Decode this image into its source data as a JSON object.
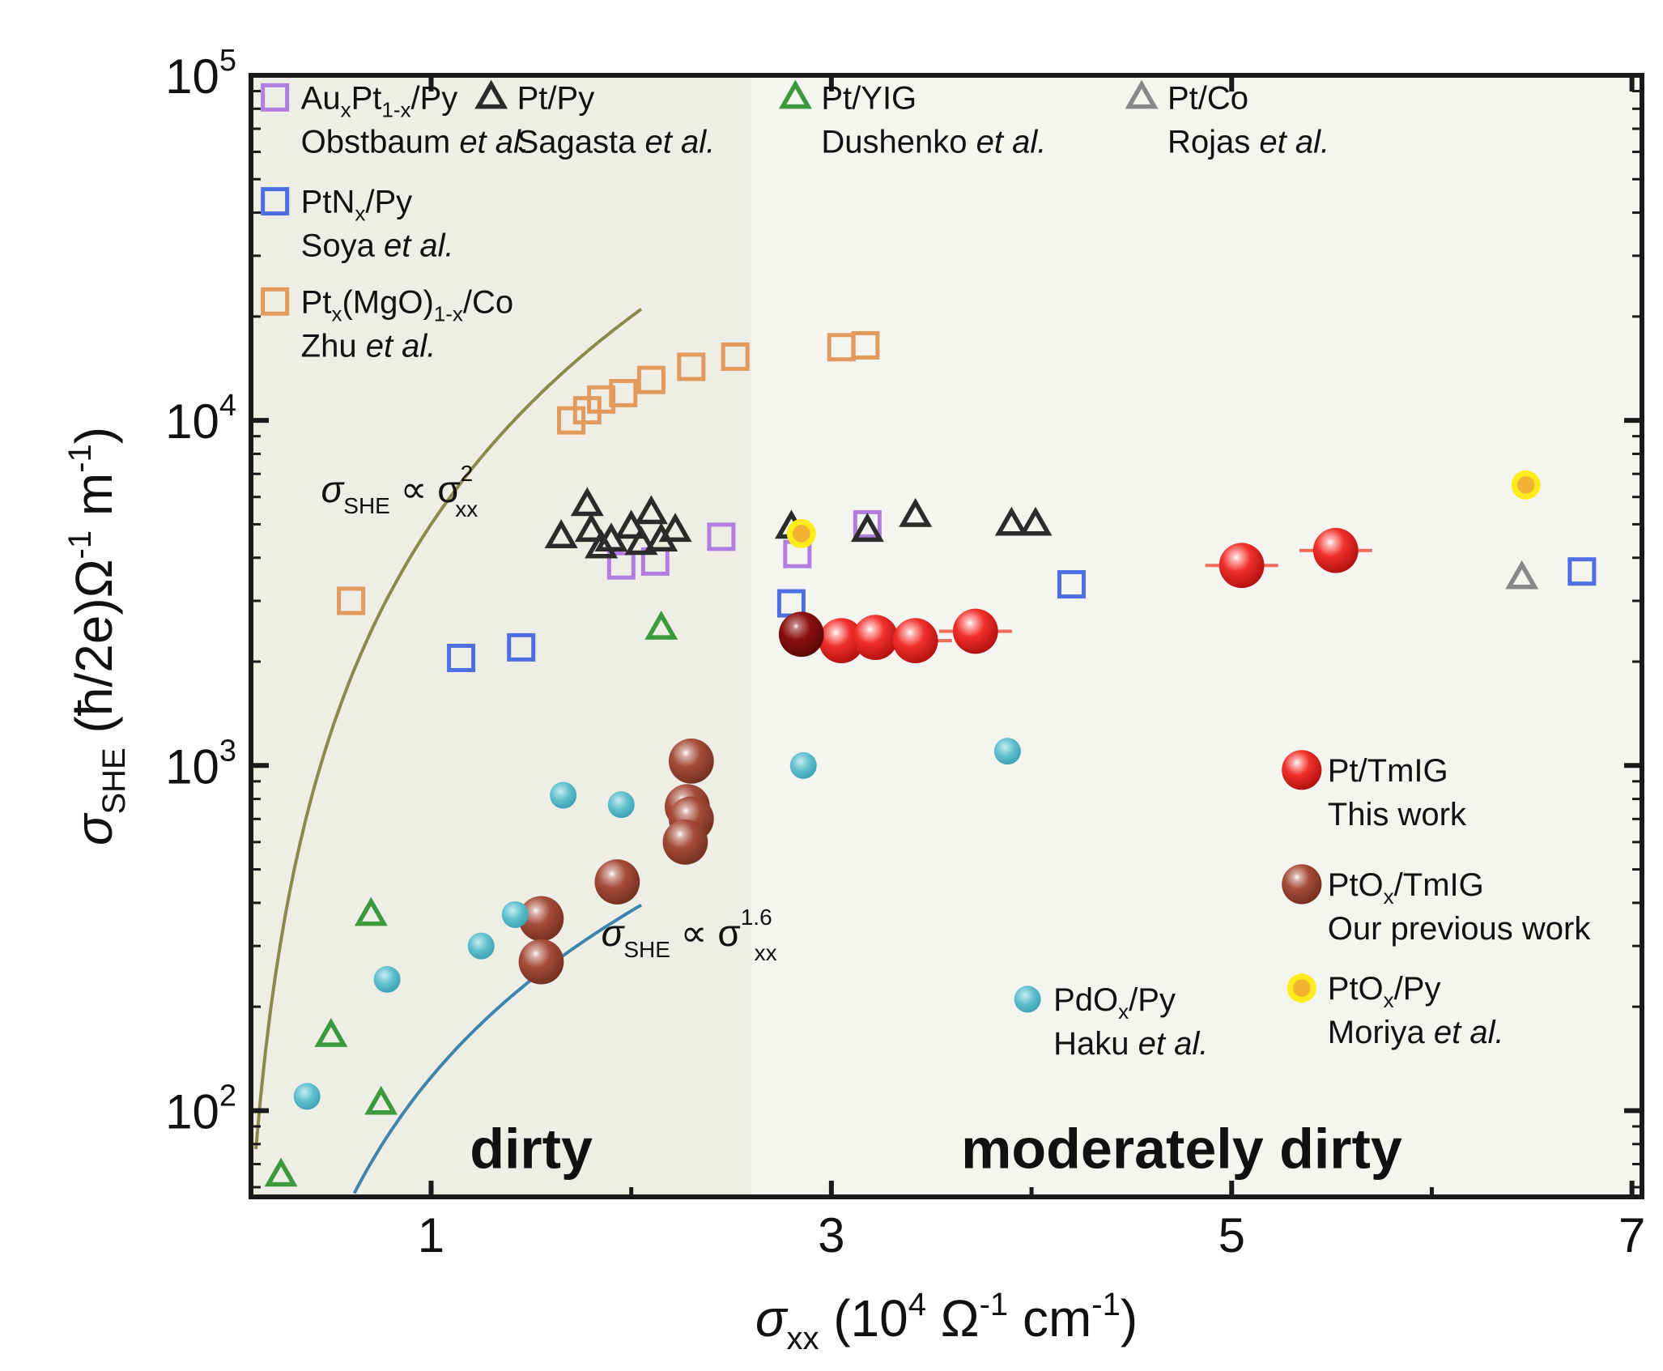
{
  "chart_data": {
    "type": "scatter",
    "xlabel": {
      "sym": "σ",
      "sub": "xx",
      "unit_open": " (10",
      "unit_exp": "4",
      "unit_rest": " Ω",
      "unit_exp2": "-1",
      "unit_end": " cm",
      "unit_exp3": "-1",
      "unit_close": ")"
    },
    "ylabel": {
      "sym": "σ",
      "sub": "SHE",
      "rest": " (ħ/2e)Ω",
      "exp1": "-1",
      "mid": " m",
      "exp2": "-1",
      "close": ")"
    },
    "xlim": [
      0.1,
      7.05
    ],
    "ylim_log10": [
      1.75,
      5
    ],
    "x_ticks": [
      {
        "v": 1,
        "label": "1"
      },
      {
        "v": 3,
        "label": "3"
      },
      {
        "v": 5,
        "label": "5"
      },
      {
        "v": 7,
        "label": "7"
      }
    ],
    "y_ticks": [
      {
        "v": 100000,
        "base": "10",
        "exp": "5"
      },
      {
        "v": 10000,
        "base": "10",
        "exp": "4"
      },
      {
        "v": 1000,
        "base": "10",
        "exp": "3"
      },
      {
        "v": 100,
        "base": "10",
        "exp": "2"
      }
    ],
    "regions": [
      {
        "name": "dirty",
        "label": "dirty",
        "x_from": 0.1,
        "x_to": 2.6,
        "fill": "#eeede6"
      },
      {
        "name": "moderately-dirty",
        "label": "moderately dirty",
        "x_from": 2.6,
        "x_to": 7.05,
        "fill": "#f4f4f0"
      }
    ],
    "region_label_at": [
      {
        "x": 1.5,
        "y": 76
      },
      {
        "x": 4.75,
        "y": 76
      }
    ],
    "relations": [
      {
        "name": "quadratic",
        "label_sym": "σ",
        "label_sub": "SHE",
        "label_prop": " ∝ σ",
        "label_sub2": "xx",
        "label_exp": "2",
        "color": "#8a8a4a",
        "exponent": 2,
        "coef": 5000,
        "x_range": [
          0.1,
          2.05
        ],
        "label_x": 0.45,
        "label_y": 5800
      },
      {
        "name": "power-1.6",
        "label_sym": "σ",
        "label_sub": "SHE",
        "label_prop": " ∝ σ",
        "label_sub2": "xx",
        "label_exp": "1.6",
        "color": "#3e85ad",
        "exponent": 1.6,
        "coef": 125,
        "x_range": [
          0.5,
          2.05
        ],
        "label_x": 1.85,
        "label_y": 300
      }
    ],
    "series": [
      {
        "name": "AuxPt1-x/Py",
        "label_main": "Au",
        "label_sub1": "x",
        "label_mid": "Pt",
        "label_sub2": "1-x",
        "label_end": "/Py",
        "ref_main": "Obstbaum ",
        "ref_etal": "et al.",
        "marker": "square",
        "color": "#b07ee0",
        "points": [
          [
            1.95,
            3800
          ],
          [
            2.12,
            3900
          ],
          [
            2.45,
            4600
          ],
          [
            2.83,
            4100
          ],
          [
            3.18,
            5000
          ]
        ]
      },
      {
        "name": "PtNx/Py",
        "label_main": "PtN",
        "label_sub1": "x",
        "label_end": "/Py",
        "ref_main": "Soya ",
        "ref_etal": "et al.",
        "marker": "square",
        "color": "#4e6ee3",
        "points": [
          [
            1.15,
            2050
          ],
          [
            1.45,
            2200
          ],
          [
            2.8,
            2950
          ],
          [
            4.2,
            3350
          ],
          [
            6.75,
            3650
          ]
        ]
      },
      {
        "name": "Ptx(MgO)1-x/Co",
        "label_main": "Pt",
        "label_sub1": "x",
        "label_mid": "(MgO)",
        "label_sub2": "1-x",
        "label_end": "/Co",
        "ref_main": "Zhu ",
        "ref_etal": "et al.",
        "marker": "square",
        "color": "#e39a5d",
        "points": [
          [
            0.6,
            3000
          ],
          [
            1.7,
            10000
          ],
          [
            1.78,
            10700
          ],
          [
            1.85,
            11500
          ],
          [
            1.96,
            12000
          ],
          [
            2.1,
            13100
          ],
          [
            2.3,
            14300
          ],
          [
            2.52,
            15300
          ],
          [
            3.05,
            16300
          ],
          [
            3.17,
            16500
          ]
        ]
      },
      {
        "name": "Pt/Py",
        "label_main": "Pt/Py",
        "ref_main": "Sagasta ",
        "ref_etal": "et al.",
        "marker": "triangle",
        "color": "#2b2b2b",
        "points": [
          [
            1.65,
            4600
          ],
          [
            1.78,
            5700
          ],
          [
            1.8,
            4800
          ],
          [
            1.85,
            4300
          ],
          [
            1.9,
            4500
          ],
          [
            2.0,
            4900
          ],
          [
            2.05,
            4400
          ],
          [
            2.1,
            5400
          ],
          [
            2.15,
            4500
          ],
          [
            2.22,
            4800
          ],
          [
            2.8,
            4900
          ],
          [
            3.18,
            4800
          ],
          [
            3.42,
            5300
          ],
          [
            3.9,
            5000
          ],
          [
            4.02,
            5000
          ]
        ]
      },
      {
        "name": "Pt/YIG",
        "label_main": "Pt/YIG",
        "ref_main": "Dushenko ",
        "ref_etal": "et al.",
        "marker": "triangle",
        "color": "#3c9a3c",
        "points": [
          [
            0.25,
            65
          ],
          [
            0.5,
            165
          ],
          [
            0.7,
            370
          ],
          [
            0.75,
            105
          ],
          [
            2.15,
            2500
          ]
        ]
      },
      {
        "name": "Pt/Co",
        "label_main": "Pt/Co",
        "ref_main": "Rojas ",
        "ref_etal": "et al.",
        "marker": "triangle",
        "color": "#888888",
        "points": [
          [
            6.45,
            3500
          ]
        ]
      },
      {
        "name": "Pt/TmIG",
        "label_main": "Pt/TmIG",
        "ref_main": "This work",
        "ref_etal": "",
        "marker": "sphere",
        "color": "#e8201f",
        "points": [
          [
            3.05,
            2300
          ],
          [
            3.22,
            2350
          ],
          [
            3.42,
            2300
          ],
          [
            3.72,
            2450
          ],
          [
            5.05,
            3800
          ],
          [
            5.52,
            4200
          ]
        ]
      },
      {
        "name": "PtOx/TmIG",
        "label_main": "PtO",
        "label_sub1": "x",
        "label_end": "/TmIG",
        "ref_main": "Our previous work",
        "ref_etal": "",
        "marker": "sphere",
        "color": "#a24a38",
        "points": [
          [
            1.55,
            360
          ],
          [
            1.55,
            270
          ],
          [
            1.93,
            460
          ],
          [
            2.3,
            1030
          ],
          [
            2.28,
            760
          ],
          [
            2.3,
            700
          ],
          [
            2.27,
            600
          ],
          [
            2.85,
            2400
          ]
        ]
      },
      {
        "name": "PtOx/Py",
        "label_main": "PtO",
        "label_sub1": "x",
        "label_end": "/Py",
        "ref_main": "Moriya ",
        "ref_etal": "et al.",
        "marker": "dot-yellow",
        "color": "#f2b233",
        "points": [
          [
            2.85,
            4700
          ],
          [
            6.47,
            6500
          ]
        ]
      },
      {
        "name": "PdOx/Py",
        "label_main": "PdO",
        "label_sub1": "x",
        "label_end": "/Py",
        "ref_main": "Haku ",
        "ref_etal": "et al.",
        "marker": "dot",
        "color": "#4cb4c4",
        "points": [
          [
            0.38,
            110
          ],
          [
            0.78,
            240
          ],
          [
            1.25,
            300
          ],
          [
            1.42,
            370
          ],
          [
            1.66,
            820
          ],
          [
            1.95,
            770
          ],
          [
            2.86,
            1000
          ],
          [
            3.88,
            1100
          ]
        ]
      }
    ],
    "legend_layout": [
      {
        "series": 0,
        "x": 0.22,
        "y": 80000
      },
      {
        "series": 3,
        "x": 1.3,
        "y": 80000
      },
      {
        "series": 4,
        "x": 2.82,
        "y": 80000
      },
      {
        "series": 5,
        "x": 4.55,
        "y": 80000
      },
      {
        "series": 1,
        "x": 0.22,
        "y": 40000
      },
      {
        "series": 2,
        "x": 0.22,
        "y": 20500
      },
      {
        "series": 6,
        "x": 5.35,
        "y": 900
      },
      {
        "series": 7,
        "x": 5.35,
        "y": 420
      },
      {
        "series": 8,
        "x": 5.35,
        "y": 210
      },
      {
        "series": 9,
        "x": 3.98,
        "y": 195
      }
    ]
  }
}
